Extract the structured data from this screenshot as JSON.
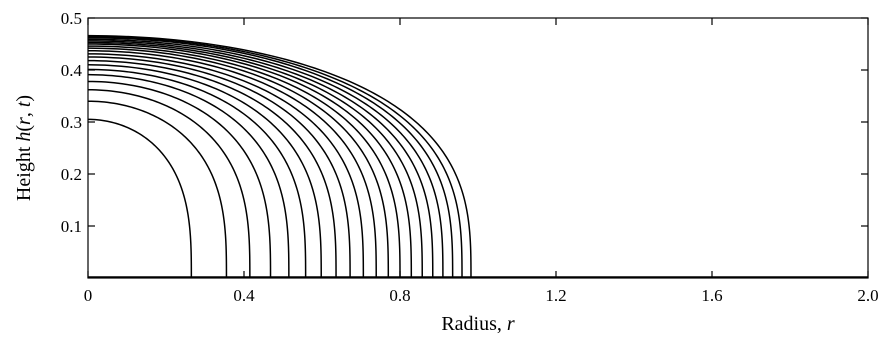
{
  "chart_data": {
    "type": "line",
    "title": "",
    "xlabel": "Radius, ",
    "xlabel_var": "r",
    "ylabel": "Height ",
    "ylabel_var": "h",
    "ylabel_args_open": "(",
    "ylabel_arg_r": "r",
    "ylabel_sep": ", ",
    "ylabel_arg_t": "t",
    "ylabel_args_close": ")",
    "xlim": [
      0,
      2.0
    ],
    "ylim": [
      0,
      0.5
    ],
    "xticks": [
      0,
      0.4,
      0.8,
      1.2,
      1.6,
      2.0
    ],
    "xtick_labels": [
      "0",
      "0.4",
      "0.8",
      "1.2",
      "1.6",
      "2.0"
    ],
    "yticks": [
      0.1,
      0.2,
      0.3,
      0.4,
      0.5
    ],
    "ytick_labels": [
      "0.1",
      "0.2",
      "0.3",
      "0.4",
      "0.5"
    ],
    "grid": false,
    "legend": "none",
    "line_color": "#000000",
    "series": [
      {
        "front_radius": 0.265,
        "center_height": 0.305
      },
      {
        "front_radius": 0.355,
        "center_height": 0.34
      },
      {
        "front_radius": 0.415,
        "center_height": 0.362
      },
      {
        "front_radius": 0.468,
        "center_height": 0.378
      },
      {
        "front_radius": 0.515,
        "center_height": 0.391
      },
      {
        "front_radius": 0.558,
        "center_height": 0.401
      },
      {
        "front_radius": 0.598,
        "center_height": 0.41
      },
      {
        "front_radius": 0.636,
        "center_height": 0.418
      },
      {
        "front_radius": 0.672,
        "center_height": 0.425
      },
      {
        "front_radius": 0.706,
        "center_height": 0.431
      },
      {
        "front_radius": 0.739,
        "center_height": 0.437
      },
      {
        "front_radius": 0.77,
        "center_height": 0.442
      },
      {
        "front_radius": 0.8,
        "center_height": 0.446
      },
      {
        "front_radius": 0.829,
        "center_height": 0.45
      },
      {
        "front_radius": 0.857,
        "center_height": 0.453
      },
      {
        "front_radius": 0.884,
        "center_height": 0.456
      },
      {
        "front_radius": 0.91,
        "center_height": 0.459
      },
      {
        "front_radius": 0.935,
        "center_height": 0.462
      },
      {
        "front_radius": 0.959,
        "center_height": 0.464
      },
      {
        "front_radius": 0.982,
        "center_height": 0.466
      }
    ]
  }
}
